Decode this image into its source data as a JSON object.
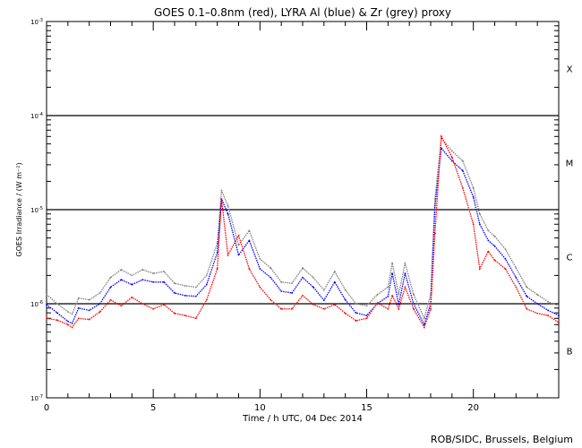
{
  "chart_data": {
    "type": "line",
    "title": "GOES 0.1–0.8nm (red), LYRA Al (blue) & Zr (grey) proxy",
    "xlabel": "Time / h UTC, 04 Dec 2014",
    "ylabel": "GOES Irradiance / (W m⁻²)",
    "xlim": [
      0,
      24
    ],
    "ylim": [
      1e-07,
      0.001
    ],
    "yscale": "log",
    "x_ticks": [
      "0",
      "5",
      "10",
      "15",
      "20"
    ],
    "x_tick_values": [
      0,
      5,
      10,
      15,
      20
    ],
    "y_ticks": [
      {
        "base": "10",
        "exp": "-3",
        "value": 0.001
      },
      {
        "base": "10",
        "exp": "-4",
        "value": 0.0001
      },
      {
        "base": "10",
        "exp": "-5",
        "value": 1e-05
      },
      {
        "base": "10",
        "exp": "-6",
        "value": 1e-06
      },
      {
        "base": "10",
        "exp": "-7",
        "value": 1e-07
      }
    ],
    "reference_lines": [
      0.0001,
      1e-05,
      1e-06
    ],
    "flare_classes": [
      {
        "label": "X",
        "value": 0.000316
      },
      {
        "label": "M",
        "value": 3.16e-05
      },
      {
        "label": "C",
        "value": 3.16e-06
      },
      {
        "label": "B",
        "value": 3.16e-07
      }
    ],
    "x": [
      0,
      0.5,
      1,
      1.2,
      1.5,
      2,
      2.5,
      3,
      3.5,
      4,
      4.5,
      5,
      5.5,
      6,
      6.5,
      7,
      7.5,
      8,
      8.2,
      8.5,
      9,
      9.5,
      10,
      10.5,
      11,
      11.5,
      12,
      12.5,
      13,
      13.5,
      14,
      14.5,
      15,
      15.5,
      16,
      16.2,
      16.5,
      16.8,
      17.2,
      17.7,
      18,
      18.2,
      18.5,
      19,
      19.5,
      20,
      20.3,
      20.7,
      21,
      21.5,
      22,
      22.5,
      23,
      23.5,
      24
    ],
    "series": [
      {
        "name": "LYRA Zr proxy",
        "color": "#808080",
        "values": [
          1.25e-06,
          1e-06,
          8.2e-07,
          7.8e-07,
          1.15e-06,
          1.1e-06,
          1.3e-06,
          1.9e-06,
          2.3e-06,
          2e-06,
          2.3e-06,
          2.1e-06,
          2.2e-06,
          1.65e-06,
          1.55e-06,
          1.5e-06,
          2e-06,
          4.4e-06,
          1.6e-05,
          1.1e-05,
          4.2e-06,
          6e-06,
          3e-06,
          2.4e-06,
          1.7e-06,
          1.65e-06,
          2.4e-06,
          1.9e-06,
          1.4e-06,
          2.2e-06,
          1.4e-06,
          1e-06,
          9.5e-07,
          1.25e-06,
          1.5e-06,
          2.7e-06,
          1.25e-06,
          2.7e-06,
          1.25e-06,
          7e-07,
          1.25e-06,
          1.3e-05,
          5.8e-05,
          4.2e-05,
          3.3e-05,
          1.7e-05,
          9e-06,
          6e-06,
          5.2e-06,
          3.8e-06,
          2.4e-06,
          1.5e-06,
          1.25e-06,
          1.05e-06,
          9.5e-07
        ]
      },
      {
        "name": "LYRA Al proxy",
        "color": "#0000ff",
        "values": [
          9.8e-07,
          8e-07,
          6.5e-07,
          6.2e-07,
          9e-07,
          8.5e-07,
          1e-06,
          1.5e-06,
          1.8e-06,
          1.6e-06,
          1.8e-06,
          1.7e-06,
          1.7e-06,
          1.3e-06,
          1.22e-06,
          1.2e-06,
          1.6e-06,
          3.5e-06,
          1.3e-05,
          9e-06,
          3.3e-06,
          4.7e-06,
          2.35e-06,
          1.9e-06,
          1.36e-06,
          1.3e-06,
          1.9e-06,
          1.5e-06,
          1.09e-06,
          1.7e-06,
          1.1e-06,
          8e-07,
          7.5e-07,
          1e-06,
          1.2e-06,
          2.1e-06,
          9.8e-07,
          2.1e-06,
          1e-06,
          6e-07,
          1e-06,
          1.1e-05,
          4.5e-05,
          3.3e-05,
          2.6e-05,
          1.36e-05,
          7e-06,
          4.7e-06,
          4.1e-06,
          3e-06,
          1.9e-06,
          1.2e-06,
          1e-06,
          8.5e-07,
          7.5e-07
        ]
      },
      {
        "name": "GOES 0.1-0.8nm",
        "color": "#ff0000",
        "values": [
          7e-07,
          6.7e-07,
          6e-07,
          5.6e-07,
          7e-07,
          6.8e-07,
          8.2e-07,
          1.1e-06,
          9.5e-07,
          1.17e-06,
          1e-06,
          8.8e-07,
          9.8e-07,
          7.9e-07,
          7.5e-07,
          7e-07,
          1.1e-06,
          2.35e-06,
          1.3e-05,
          3.3e-06,
          5.3e-06,
          2.35e-06,
          1.5e-06,
          1.1e-06,
          8.8e-07,
          8.8e-07,
          1.22e-06,
          9.8e-07,
          8.8e-07,
          9.8e-07,
          7.9e-07,
          6.6e-07,
          7e-07,
          1.02e-06,
          8.8e-07,
          1.22e-06,
          8.8e-07,
          1.5e-06,
          8.8e-07,
          5.6e-07,
          8.8e-07,
          5.6e-06,
          6e-05,
          3.6e-05,
          1.7e-05,
          7e-06,
          2.35e-06,
          3.6e-06,
          2.9e-06,
          2.35e-06,
          1.5e-06,
          8.8e-07,
          7.9e-07,
          7.5e-07,
          6.3e-07
        ]
      }
    ],
    "grid": false,
    "legend": "none (colours described in title)"
  },
  "footer": "ROB/SIDC, Brussels, Belgium"
}
